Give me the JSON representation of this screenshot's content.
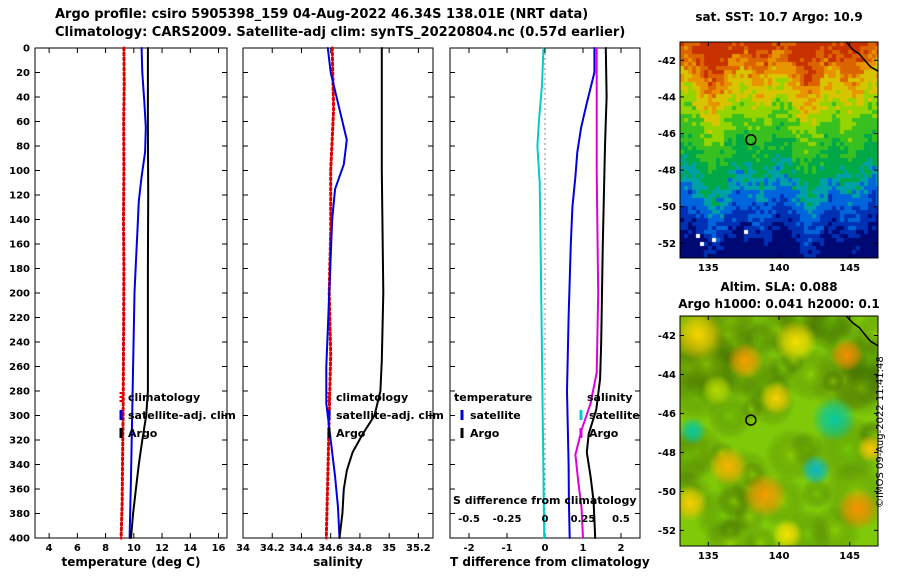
{
  "titles": {
    "line1": "Argo profile: csiro 5905398_159 04-Aug-2022 46.34S 138.01E (NRT data)",
    "line2": "Climatology: CARS2009. Satellite-adj clim: synTS_20220804.nc (0.57d earlier)"
  },
  "credit": "©IMOS 09-Aug-2022 11:41:48",
  "colors": {
    "climatology": "#dd0000",
    "satellite_adj_clim": "#0000dd",
    "argo": "#000000",
    "salinity_satellite_diff": "#00cccc",
    "salinity_argo_diff": "#dd00dd",
    "zero_line": "#888888"
  },
  "chart_data": [
    {
      "type": "line",
      "xlabel": "temperature (deg C)",
      "xlim": [
        3,
        16.6
      ],
      "ylim": [
        0,
        400
      ],
      "xticks": [
        4,
        6,
        8,
        10,
        12,
        14,
        16
      ],
      "yticks": [
        0,
        20,
        40,
        60,
        80,
        100,
        120,
        140,
        160,
        180,
        200,
        220,
        240,
        260,
        280,
        300,
        320,
        340,
        360,
        380,
        400
      ],
      "series": [
        {
          "name": "climatology",
          "color": "#dd0000",
          "width": 3,
          "dashed": true,
          "points": [
            [
              9.3,
              0
            ],
            [
              9.32,
              30
            ],
            [
              9.28,
              60
            ],
            [
              9.3,
              100
            ],
            [
              9.27,
              140
            ],
            [
              9.3,
              180
            ],
            [
              9.28,
              220
            ],
            [
              9.26,
              260
            ],
            [
              9.24,
              300
            ],
            [
              9.2,
              340
            ],
            [
              9.18,
              370
            ],
            [
              9.1,
              400
            ]
          ]
        },
        {
          "name": "satellite-adj. clim",
          "color": "#0000dd",
          "width": 2,
          "points": [
            [
              10.55,
              0
            ],
            [
              10.6,
              20
            ],
            [
              10.75,
              45
            ],
            [
              10.85,
              65
            ],
            [
              10.8,
              85
            ],
            [
              10.55,
              105
            ],
            [
              10.35,
              125
            ],
            [
              10.25,
              150
            ],
            [
              10.15,
              175
            ],
            [
              10.05,
              200
            ],
            [
              10.0,
              230
            ],
            [
              9.95,
              260
            ],
            [
              9.9,
              290
            ],
            [
              9.85,
              320
            ],
            [
              9.8,
              350
            ],
            [
              9.75,
              375
            ],
            [
              9.7,
              400
            ]
          ]
        },
        {
          "name": "Argo",
          "color": "#000000",
          "width": 2,
          "points": [
            [
              11.0,
              0
            ],
            [
              11.0,
              60
            ],
            [
              11.02,
              120
            ],
            [
              11.0,
              180
            ],
            [
              11.0,
              240
            ],
            [
              11.0,
              280
            ],
            [
              10.88,
              300
            ],
            [
              10.6,
              320
            ],
            [
              10.35,
              340
            ],
            [
              10.15,
              360
            ],
            [
              9.95,
              380
            ],
            [
              9.8,
              400
            ]
          ]
        }
      ],
      "legend": [
        {
          "label": "climatology",
          "color": "#dd0000",
          "dashed": true
        },
        {
          "label": "satellite-adj. clim",
          "color": "#0000dd"
        },
        {
          "label": "Argo",
          "color": "#000000"
        }
      ]
    },
    {
      "type": "line",
      "xlabel": "salinity",
      "xlim": [
        34,
        35.3
      ],
      "ylim": [
        0,
        400
      ],
      "xticks": [
        34,
        34.2,
        34.4,
        34.6,
        34.8,
        35,
        35.2
      ],
      "yticks": [
        0,
        20,
        40,
        60,
        80,
        100,
        120,
        140,
        160,
        180,
        200,
        220,
        240,
        260,
        280,
        300,
        320,
        340,
        360,
        380,
        400
      ],
      "series": [
        {
          "name": "climatology",
          "color": "#dd0000",
          "width": 3,
          "dashed": true,
          "points": [
            [
              34.61,
              0
            ],
            [
              34.62,
              50
            ],
            [
              34.6,
              100
            ],
            [
              34.6,
              150
            ],
            [
              34.59,
              200
            ],
            [
              34.6,
              250
            ],
            [
              34.59,
              300
            ],
            [
              34.58,
              350
            ],
            [
              34.57,
              400
            ]
          ]
        },
        {
          "name": "satellite-adj. clim",
          "color": "#0000dd",
          "width": 2,
          "points": [
            [
              34.58,
              0
            ],
            [
              34.6,
              20
            ],
            [
              34.66,
              50
            ],
            [
              34.71,
              75
            ],
            [
              34.69,
              95
            ],
            [
              34.63,
              115
            ],
            [
              34.61,
              140
            ],
            [
              34.6,
              170
            ],
            [
              34.59,
              200
            ],
            [
              34.58,
              230
            ],
            [
              34.57,
              260
            ],
            [
              34.57,
              290
            ],
            [
              34.6,
              320
            ],
            [
              34.63,
              350
            ],
            [
              34.65,
              375
            ],
            [
              34.66,
              400
            ]
          ]
        },
        {
          "name": "Argo",
          "color": "#000000",
          "width": 2,
          "points": [
            [
              34.95,
              0
            ],
            [
              34.95,
              100
            ],
            [
              34.96,
              200
            ],
            [
              34.95,
              255
            ],
            [
              34.94,
              280
            ],
            [
              34.9,
              300
            ],
            [
              34.82,
              315
            ],
            [
              34.75,
              330
            ],
            [
              34.71,
              345
            ],
            [
              34.69,
              360
            ],
            [
              34.68,
              380
            ],
            [
              34.66,
              400
            ]
          ]
        }
      ],
      "legend": [
        {
          "label": "climatology",
          "color": "#dd0000",
          "dashed": true
        },
        {
          "label": "satellite-adj. clim",
          "color": "#0000dd"
        },
        {
          "label": "Argo",
          "color": "#000000"
        }
      ]
    },
    {
      "type": "line",
      "xlabel": "T difference from climatology",
      "x2label": "S difference from climatology",
      "xlim": [
        -2.5,
        2.5
      ],
      "ylim": [
        0,
        400
      ],
      "xticks": [
        -2,
        -1,
        0,
        1,
        2
      ],
      "x2ticks": [
        -0.5,
        -0.25,
        0,
        0.25,
        0.5
      ],
      "x2scale": 4,
      "zero_line": true,
      "yticks": [
        0,
        20,
        40,
        60,
        80,
        100,
        120,
        140,
        160,
        180,
        200,
        220,
        240,
        260,
        280,
        300,
        320,
        340,
        360,
        380,
        400
      ],
      "series": [
        {
          "name": "T satellite",
          "color": "#0000dd",
          "width": 2,
          "points": [
            [
              1.3,
              0
            ],
            [
              1.3,
              20
            ],
            [
              1.1,
              45
            ],
            [
              0.95,
              65
            ],
            [
              0.85,
              85
            ],
            [
              0.8,
              105
            ],
            [
              0.72,
              130
            ],
            [
              0.68,
              160
            ],
            [
              0.65,
              190
            ],
            [
              0.62,
              220
            ],
            [
              0.6,
              250
            ],
            [
              0.58,
              280
            ],
            [
              0.6,
              310
            ],
            [
              0.62,
              340
            ],
            [
              0.63,
              370
            ],
            [
              0.65,
              400
            ]
          ]
        },
        {
          "name": "T Argo",
          "color": "#000000",
          "width": 2,
          "points": [
            [
              1.6,
              0
            ],
            [
              1.62,
              40
            ],
            [
              1.58,
              80
            ],
            [
              1.55,
              120
            ],
            [
              1.52,
              160
            ],
            [
              1.5,
              200
            ],
            [
              1.48,
              240
            ],
            [
              1.45,
              270
            ],
            [
              1.35,
              295
            ],
            [
              1.15,
              315
            ],
            [
              1.1,
              330
            ],
            [
              1.2,
              350
            ],
            [
              1.28,
              370
            ],
            [
              1.32,
              400
            ]
          ]
        },
        {
          "name": "S satellite",
          "color": "#00cccc",
          "width": 2,
          "scale": "S",
          "points": [
            [
              -0.01,
              0
            ],
            [
              -0.02,
              30
            ],
            [
              -0.04,
              60
            ],
            [
              -0.05,
              80
            ],
            [
              -0.035,
              110
            ],
            [
              -0.03,
              150
            ],
            [
              -0.025,
              200
            ],
            [
              -0.02,
              250
            ],
            [
              -0.015,
              300
            ],
            [
              -0.01,
              350
            ],
            [
              -0.005,
              400
            ]
          ]
        },
        {
          "name": "S Argo",
          "color": "#dd00dd",
          "width": 2,
          "scale": "S",
          "points": [
            [
              0.34,
              0
            ],
            [
              0.34,
              100
            ],
            [
              0.35,
              200
            ],
            [
              0.34,
              265
            ],
            [
              0.3,
              290
            ],
            [
              0.24,
              312
            ],
            [
              0.2,
              332
            ],
            [
              0.22,
              355
            ],
            [
              0.24,
              375
            ],
            [
              0.25,
              400
            ]
          ]
        }
      ],
      "legend2": {
        "columns": [
          {
            "header": "temperature",
            "entries": [
              {
                "label": "satellite",
                "color": "#0000dd"
              },
              {
                "label": "Argo",
                "color": "#000000"
              }
            ]
          },
          {
            "header": "salinity",
            "entries": [
              {
                "label": "satellite",
                "color": "#00cccc"
              },
              {
                "label": "Argo",
                "color": "#dd00dd"
              }
            ]
          }
        ]
      }
    },
    {
      "type": "heatmap",
      "title": "sat. SST: 10.7 Argo: 10.9",
      "lon_range": [
        133,
        147
      ],
      "lat_range": [
        -52.8,
        -41
      ],
      "xticks": [
        135,
        140,
        145
      ],
      "yticks": [
        -42,
        -44,
        -46,
        -48,
        -50,
        -52
      ],
      "marker": {
        "lon": 138.01,
        "lat": -46.34
      },
      "palette": [
        {
          "v": 0.1,
          "c": "#000874"
        },
        {
          "v": 0.2,
          "c": "#0030b4"
        },
        {
          "v": 0.3,
          "c": "#0064dc"
        },
        {
          "v": 0.37,
          "c": "#00a0a8"
        },
        {
          "v": 0.5,
          "c": "#00a848"
        },
        {
          "v": 0.62,
          "c": "#38c020"
        },
        {
          "v": 0.72,
          "c": "#94d400"
        },
        {
          "v": 0.8,
          "c": "#d8c400"
        },
        {
          "v": 0.87,
          "c": "#e89400"
        },
        {
          "v": 0.94,
          "c": "#dc6400"
        },
        {
          "v": 9,
          "c": "#c83200"
        }
      ],
      "white_specks": [
        [
          0.08,
          0.88
        ],
        [
          0.11,
          0.93
        ],
        [
          0.17,
          0.9
        ],
        [
          0.32,
          0.87
        ]
      ],
      "coast": [
        [
          0.84,
          0
        ],
        [
          0.872,
          0.035
        ],
        [
          0.905,
          0.055
        ],
        [
          0.938,
          0.09
        ],
        [
          0.962,
          0.115
        ],
        [
          1,
          0.135
        ]
      ]
    },
    {
      "type": "heatmap",
      "title1": "Altim. SLA: 0.088",
      "title2": "Argo h1000: 0.041 h2000: 0.1",
      "lon_range": [
        133,
        147
      ],
      "lat_range": [
        -52.8,
        -41
      ],
      "xticks": [
        135,
        140,
        145
      ],
      "yticks": [
        -42,
        -44,
        -46,
        -48,
        -50,
        -52
      ],
      "marker": {
        "lon": 138.01,
        "lat": -46.34
      },
      "base_color": "#7fc908",
      "blobs": [
        {
          "lon": 134.3,
          "lat": -42.0,
          "r": 1.8,
          "c": "#ffd400"
        },
        {
          "lon": 137.6,
          "lat": -43.3,
          "r": 1.3,
          "c": "#ffa000"
        },
        {
          "lon": 141.2,
          "lat": -42.3,
          "r": 1.5,
          "c": "#ffe400"
        },
        {
          "lon": 144.8,
          "lat": -43.0,
          "r": 1.2,
          "c": "#ff9000"
        },
        {
          "lon": 135.6,
          "lat": -44.8,
          "r": 1.1,
          "c": "#bce000"
        },
        {
          "lon": 139.8,
          "lat": -45.2,
          "r": 1.2,
          "c": "#ffd400"
        },
        {
          "lon": 143.9,
          "lat": -46.3,
          "r": 1.6,
          "c": "#00c8a8"
        },
        {
          "lon": 133.9,
          "lat": -46.9,
          "r": 1.0,
          "c": "#00c8a8"
        },
        {
          "lon": 136.4,
          "lat": -48.7,
          "r": 1.4,
          "c": "#ffb400"
        },
        {
          "lon": 133.7,
          "lat": -50.6,
          "r": 1.3,
          "c": "#ffd400"
        },
        {
          "lon": 139.0,
          "lat": -50.2,
          "r": 1.6,
          "c": "#ff9c00"
        },
        {
          "lon": 142.6,
          "lat": -48.9,
          "r": 1.1,
          "c": "#00b4d0"
        },
        {
          "lon": 145.6,
          "lat": -50.9,
          "r": 1.5,
          "c": "#ff9000"
        },
        {
          "lon": 140.6,
          "lat": -52.2,
          "r": 1.1,
          "c": "#ffe400"
        },
        {
          "lon": 146.5,
          "lat": -47.8,
          "r": 1.0,
          "c": "#ffc800"
        }
      ],
      "coast": [
        [
          0.84,
          0
        ],
        [
          0.872,
          0.03
        ],
        [
          0.905,
          0.05
        ],
        [
          0.938,
          0.085
        ],
        [
          0.962,
          0.11
        ],
        [
          1,
          0.13
        ]
      ]
    }
  ]
}
